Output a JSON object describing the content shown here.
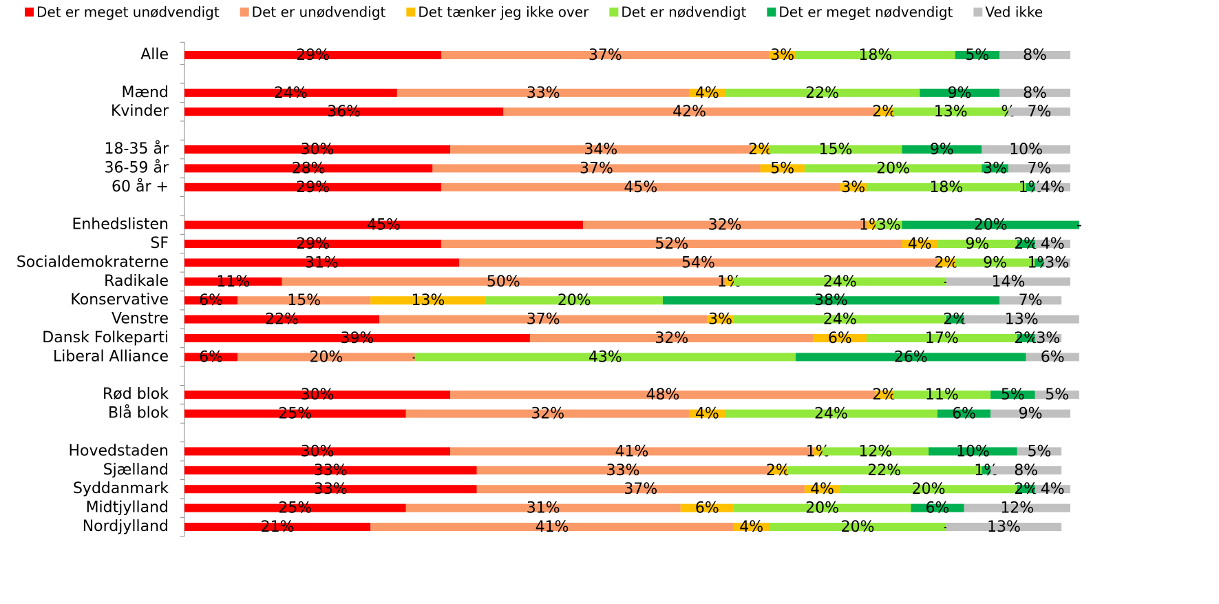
{
  "chart_data": {
    "type": "stacked_barh",
    "categories": [
      "Alle",
      null,
      "Mænd",
      "Kvinder",
      null,
      "18-35 år",
      "36-59 år",
      "60 år +",
      null,
      "Enhedslisten",
      "SF",
      "Socialdemokraterne",
      "Radikale",
      "Konservative",
      "Venstre",
      "Dansk Folkeparti",
      "Liberal Alliance",
      null,
      "Rød blok",
      "Blå blok",
      null,
      "Hovedstaden",
      "Sjælland",
      "Syddanmark",
      "Midtjylland",
      "Nordjylland"
    ],
    "xlim": [
      0,
      100
    ],
    "legend": "top",
    "series": [
      {
        "name": "Det er meget unødvendigt",
        "color": "#ff0000",
        "values": [
          29,
          null,
          24,
          36,
          null,
          30,
          28,
          29,
          null,
          45,
          29,
          31,
          11,
          6,
          22,
          39,
          6,
          null,
          30,
          25,
          null,
          30,
          33,
          33,
          25,
          21
        ],
        "value_labels": [
          "29%",
          null,
          "24%",
          "36%",
          null,
          "30%",
          "28%",
          "29%",
          null,
          "45%",
          "29%",
          "31%",
          "11%",
          "6%",
          "22%",
          "39%",
          "6%",
          null,
          "30%",
          "25%",
          null,
          "30%",
          "33%",
          "33%",
          "25%",
          "21%"
        ]
      },
      {
        "name": "Det er unødvendigt",
        "color": "#fa9a68",
        "values": [
          37,
          null,
          33,
          42,
          null,
          34,
          37,
          45,
          null,
          32,
          52,
          54,
          50,
          15,
          37,
          32,
          20,
          null,
          48,
          32,
          null,
          41,
          33,
          37,
          31,
          41
        ],
        "value_labels": [
          "37%",
          null,
          "33%",
          "42%",
          null,
          "34%",
          "37%",
          "45%",
          null,
          "32%",
          "52%",
          "54%",
          "50%",
          "15%",
          "37%",
          "32%",
          "20%",
          null,
          "48%",
          "32%",
          null,
          "41%",
          "33%",
          "37%",
          "31%",
          "41%"
        ]
      },
      {
        "name": "Det tænker jeg ikke over",
        "color": "#ffc000",
        "values": [
          3,
          null,
          4,
          2,
          null,
          2,
          5,
          3,
          null,
          1,
          4,
          2,
          1,
          13,
          3,
          6,
          0,
          null,
          2,
          4,
          null,
          1,
          2,
          4,
          6,
          4
        ],
        "value_labels": [
          "3%",
          null,
          "4%",
          "2%",
          null,
          "2%",
          "5%",
          "3%",
          null,
          "1%",
          "4%",
          "2%",
          "1%",
          "13%",
          "3%",
          "6%",
          "-",
          null,
          "2%",
          "4%",
          null,
          "1%",
          "2%",
          "4%",
          "6%",
          "4%"
        ]
      },
      {
        "name": "Det er nødvendigt",
        "color": "#92e83c",
        "values": [
          18,
          null,
          22,
          13,
          null,
          15,
          20,
          18,
          null,
          3,
          9,
          9,
          24,
          20,
          24,
          17,
          43,
          null,
          11,
          24,
          null,
          12,
          22,
          20,
          20,
          20
        ],
        "value_labels": [
          "18%",
          null,
          "22%",
          "13%",
          null,
          "15%",
          "20%",
          "18%",
          null,
          "3%",
          "9%",
          "9%",
          "24%",
          "20%",
          "24%",
          "17%",
          "43%",
          null,
          "11%",
          "24%",
          null,
          "12%",
          "22%",
          "20%",
          "20%",
          "20%"
        ]
      },
      {
        "name": "Det er meget nødvendigt",
        "color": "#00b050",
        "values": [
          5,
          null,
          9,
          0,
          null,
          9,
          3,
          1,
          null,
          20,
          2,
          1,
          0,
          38,
          2,
          2,
          26,
          null,
          5,
          6,
          null,
          10,
          1,
          2,
          6,
          0
        ],
        "value_labels": [
          "5%",
          null,
          "9%",
          "%",
          null,
          "9%",
          "3%",
          "1%",
          null,
          "20%",
          "2%",
          "1%",
          "-",
          "38%",
          "2%",
          "2%",
          "26%",
          null,
          "5%",
          "6%",
          null,
          "10%",
          "1%",
          "2%",
          "6%",
          "-"
        ]
      },
      {
        "name": "Ved ikke",
        "color": "#c0c0c0",
        "values": [
          8,
          null,
          8,
          7,
          null,
          10,
          7,
          4,
          null,
          0,
          4,
          3,
          14,
          7,
          13,
          3,
          6,
          null,
          5,
          9,
          null,
          5,
          8,
          4,
          12,
          13
        ],
        "value_labels": [
          "8%",
          null,
          "8%",
          "7%",
          null,
          "10%",
          "7%",
          "4%",
          null,
          "-",
          "4%",
          "3%",
          "14%",
          "7%",
          "13%",
          "3%",
          "6%",
          null,
          "5%",
          "9%",
          null,
          "5%",
          "8%",
          "4%",
          "12%",
          "13%"
        ]
      }
    ]
  }
}
